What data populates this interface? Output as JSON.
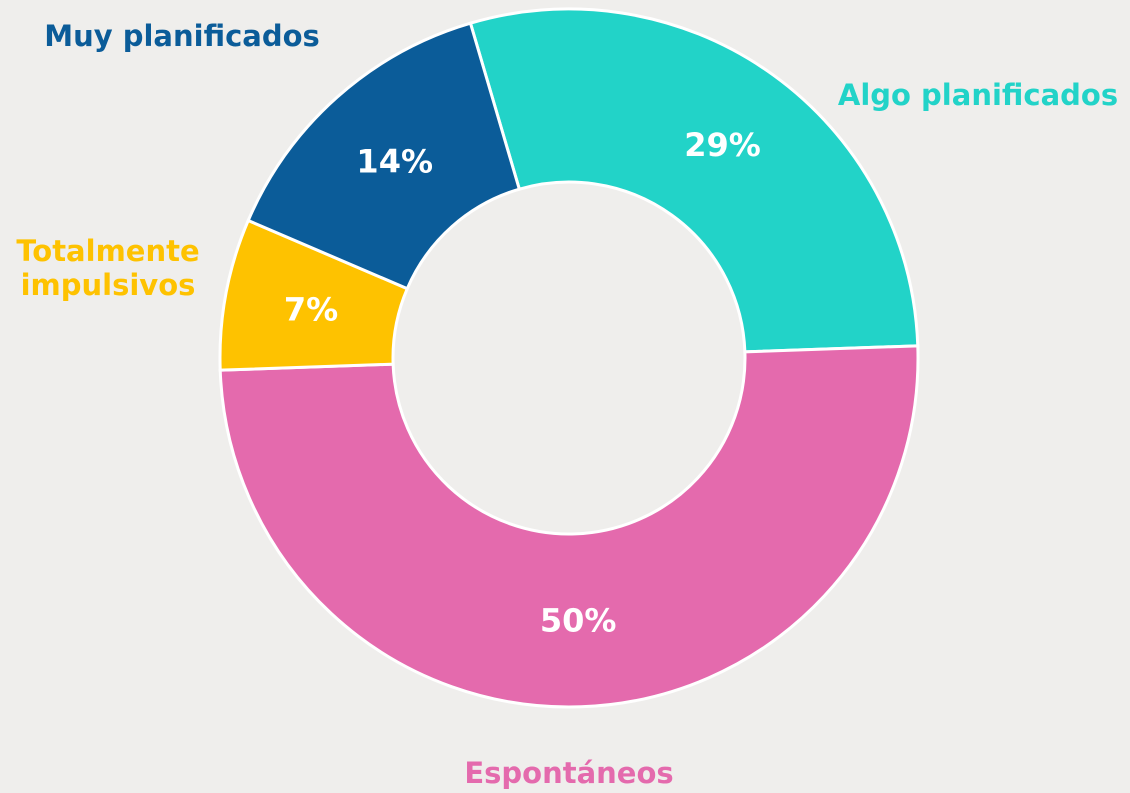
{
  "chart_data": {
    "type": "donut",
    "categories": [
      "Algo planificados",
      "Espontáneos",
      "Totalmente impulsivos",
      "Muy planificados"
    ],
    "values": [
      29,
      50,
      7,
      14
    ],
    "value_labels": [
      "29%",
      "50%",
      "7%",
      "14%"
    ],
    "colors": [
      "#22d3c8",
      "#e46aad",
      "#fec200",
      "#0b5c99"
    ]
  }
}
